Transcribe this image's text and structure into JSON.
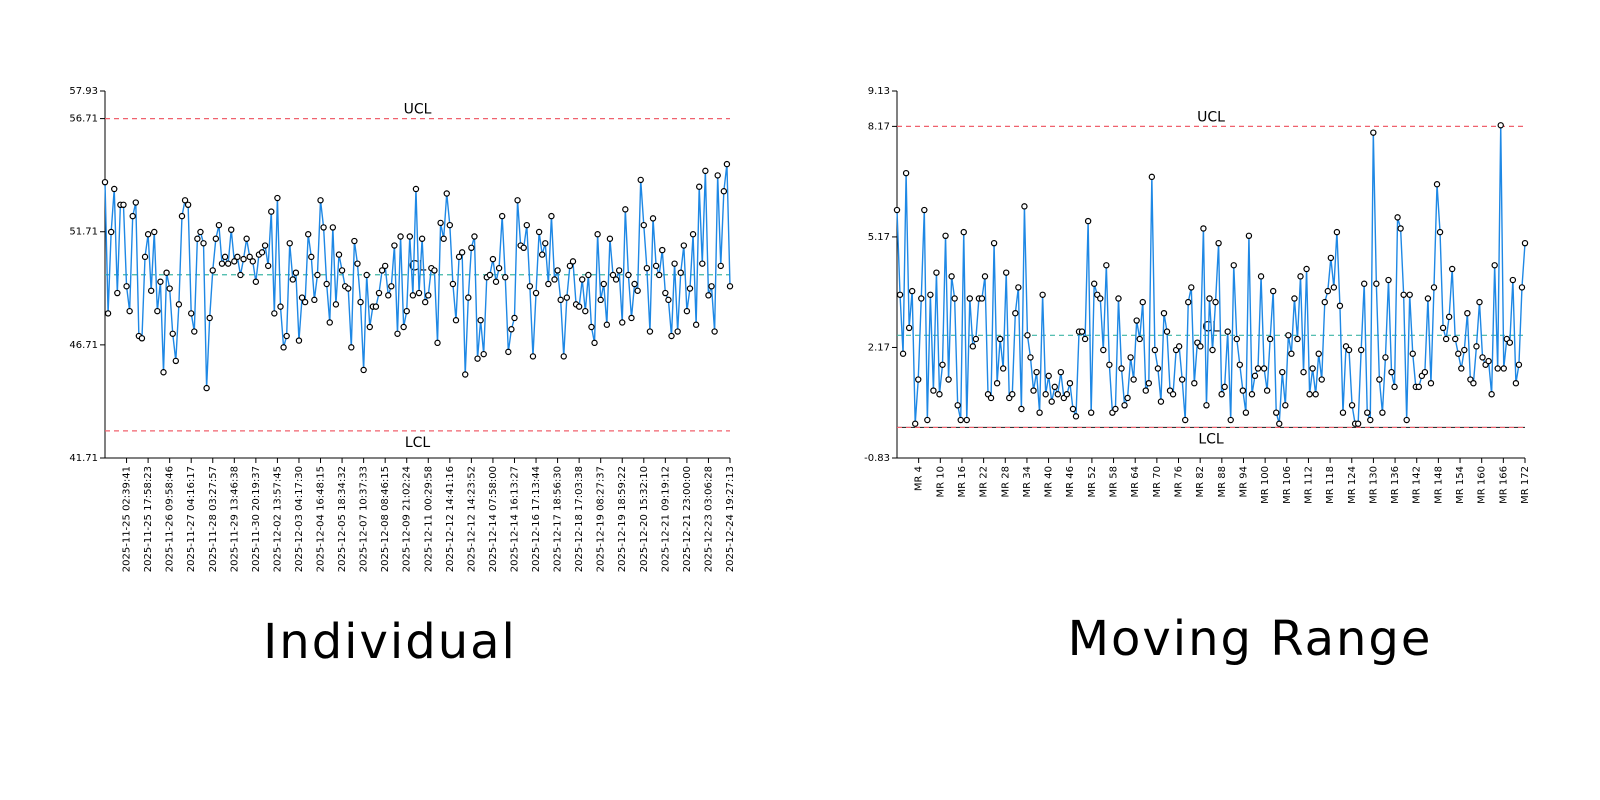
{
  "colors": {
    "line": "#1e88e5",
    "marker_stroke": "#000000",
    "marker_fill": "#ffffff",
    "limit": "#f0616d",
    "center": "#3fb6a6",
    "lcl_floor": "#333333"
  },
  "chart_data": [
    {
      "type": "line",
      "title": "Individual",
      "ylim": [
        41.71,
        57.93
      ],
      "y_ticks": [
        "41.71",
        "46.71",
        "51.71",
        "56.71",
        "57.93"
      ],
      "limits": {
        "ucl": 56.71,
        "cl": 49.81,
        "lcl": 42.91,
        "ucl_label": "UCL",
        "cl_label": "CL",
        "lcl_label": "LCL"
      },
      "x_tick_labels": [
        "2025-11-25 02:39:41",
        "2025-11-25 17:58:23",
        "2025-11-26 09:58:46",
        "2025-11-27 04:16:17",
        "2025-11-28 03:27:57",
        "2025-11-29 13:46:38",
        "2025-11-30 20:19:37",
        "2025-12-02 13:57:45",
        "2025-12-03 04:17:30",
        "2025-12-04 16:48:15",
        "2025-12-05 18:34:32",
        "2025-12-07 10:37:33",
        "2025-12-08 08:46:15",
        "2025-12-09 21:02:24",
        "2025-12-11 00:29:58",
        "2025-12-12 14:41:16",
        "2025-12-12 14:23:52",
        "2025-12-14 07:58:00",
        "2025-12-14 16:13:27",
        "2025-12-16 17:13:44",
        "2025-12-17 18:56:30",
        "2025-12-18 17:03:38",
        "2025-12-19 08:27:37",
        "2025-12-19 18:59:22",
        "2025-12-20 15:32:10",
        "2025-12-21 09:19:12",
        "2025-12-21 23:00:00",
        "2025-12-23 03:06:28",
        "2025-12-24 19:27:13"
      ],
      "values": [
        53.9,
        48.1,
        51.7,
        53.6,
        49.0,
        52.9,
        52.9,
        49.3,
        48.2,
        52.4,
        53.0,
        47.1,
        47.0,
        50.6,
        51.6,
        49.1,
        51.7,
        48.2,
        49.5,
        45.5,
        49.9,
        49.2,
        47.2,
        46.0,
        48.5,
        52.4,
        53.1,
        52.9,
        48.1,
        47.3,
        51.4,
        51.7,
        51.2,
        44.8,
        47.9,
        50.0,
        51.4,
        52.0,
        50.3,
        50.6,
        50.3,
        51.8,
        50.4,
        50.6,
        49.8,
        50.5,
        51.4,
        50.6,
        50.4,
        49.5,
        50.7,
        50.8,
        51.1,
        50.2,
        52.6,
        48.1,
        53.2,
        48.4,
        46.6,
        47.1,
        51.2,
        49.6,
        49.9,
        46.9,
        48.8,
        48.6,
        51.6,
        50.6,
        48.7,
        49.8,
        53.1,
        51.9,
        49.4,
        47.7,
        51.9,
        48.5,
        50.7,
        50.0,
        49.3,
        49.2,
        46.6,
        51.3,
        50.3,
        48.6,
        45.6,
        49.8,
        47.5,
        48.4,
        48.4,
        49.0,
        50.0,
        50.2,
        48.9,
        49.3,
        51.1,
        47.2,
        51.5,
        47.5,
        48.2,
        51.5,
        48.9,
        53.6,
        49.0,
        51.4,
        48.6,
        48.9,
        50.1,
        50.0,
        46.8,
        52.1,
        51.4,
        53.4,
        52.0,
        49.4,
        47.8,
        50.6,
        50.8,
        45.4,
        48.8,
        51.0,
        51.5,
        46.1,
        47.8,
        46.3,
        49.7,
        49.8,
        50.5,
        49.5,
        50.1,
        52.4,
        49.7,
        46.4,
        47.4,
        47.9,
        53.1,
        51.1,
        51.0,
        52.0,
        49.3,
        46.2,
        49.0,
        51.7,
        50.7,
        51.2,
        49.4,
        52.4,
        49.6,
        50.0,
        48.7,
        46.2,
        48.8,
        50.2,
        50.4,
        48.5,
        48.4,
        49.6,
        48.2,
        49.8,
        47.5,
        46.8,
        51.6,
        48.7,
        49.4,
        47.6,
        51.4,
        49.8,
        49.6,
        50.0,
        47.7,
        52.7,
        49.8,
        47.9,
        49.4,
        49.1,
        54.0,
        52.0,
        50.1,
        47.3,
        52.3,
        50.2,
        49.8,
        50.9,
        49.0,
        48.7,
        47.1,
        50.3,
        47.3,
        49.9,
        51.1,
        48.2,
        49.2,
        51.6,
        47.6,
        53.7,
        50.3,
        54.4,
        48.9,
        49.3,
        47.3,
        54.2,
        50.2,
        53.5,
        54.7,
        49.3
      ],
      "value_count": 0
    },
    {
      "type": "line",
      "title": "Moving Range",
      "ylim": [
        -0.83,
        9.13
      ],
      "y_ticks": [
        "-0.83",
        "2.17",
        "5.17",
        "8.17",
        "9.13"
      ],
      "limits": {
        "ucl": 8.17,
        "cl": 2.5,
        "lcl": 0.0,
        "ucl_label": "UCL",
        "cl_label": "CL",
        "lcl_label": "LCL"
      },
      "x_tick_labels": [
        "MR 4",
        "MR 10",
        "MR 16",
        "MR 22",
        "MR 28",
        "MR 34",
        "MR 40",
        "MR 46",
        "MR 52",
        "MR 58",
        "MR 64",
        "MR 70",
        "MR 76",
        "MR 82",
        "MR 88",
        "MR 94",
        "MR 100",
        "MR 106",
        "MR 112",
        "MR 118",
        "MR 124",
        "MR 130",
        "MR 136",
        "MR 142",
        "MR 148",
        "MR 154",
        "MR 160",
        "MR 166",
        "MR 172"
      ],
      "values": [
        5.9,
        3.6,
        2.0,
        6.9,
        2.7,
        3.7,
        0.1,
        1.3,
        3.5,
        5.9,
        0.2,
        3.6,
        1.0,
        4.2,
        0.9,
        1.7,
        5.2,
        1.3,
        4.1,
        3.5,
        0.6,
        0.2,
        5.3,
        0.2,
        3.5,
        2.2,
        2.4,
        3.5,
        3.5,
        4.1,
        0.9,
        0.8,
        5.0,
        1.2,
        2.4,
        1.6,
        4.2,
        0.8,
        0.9,
        3.1,
        3.8,
        0.5,
        6.0,
        2.5,
        1.9,
        1.0,
        1.5,
        0.4,
        3.6,
        0.9,
        1.4,
        0.7,
        1.1,
        0.9,
        1.5,
        0.8,
        0.9,
        1.2,
        0.5,
        0.3,
        2.6,
        2.6,
        2.4,
        5.6,
        0.4,
        3.9,
        3.6,
        3.5,
        2.1,
        4.4,
        1.7,
        0.4,
        0.5,
        3.5,
        1.6,
        0.6,
        0.8,
        1.9,
        1.3,
        2.9,
        2.4,
        3.4,
        1.0,
        1.2,
        6.8,
        2.1,
        1.6,
        0.7,
        3.1,
        2.6,
        1.0,
        0.9,
        2.1,
        2.2,
        1.3,
        0.2,
        3.4,
        3.8,
        1.2,
        2.3,
        2.2,
        5.4,
        0.6,
        3.5,
        2.1,
        3.4,
        5.0,
        0.9,
        1.1,
        2.6,
        0.2,
        4.4,
        2.4,
        1.7,
        1.0,
        0.4,
        5.2,
        0.9,
        1.4,
        1.6,
        4.1,
        1.6,
        1.0,
        2.4,
        3.7,
        0.4,
        0.1,
        1.5,
        0.6,
        2.5,
        2.0,
        3.5,
        2.4,
        4.1,
        1.5,
        4.3,
        0.9,
        1.6,
        0.9,
        2.0,
        1.3,
        3.4,
        3.7,
        4.6,
        3.8,
        5.3,
        3.3,
        0.4,
        2.2,
        2.1,
        0.6,
        0.1,
        0.1,
        2.1,
        3.9,
        0.4,
        0.2,
        8.0,
        3.9,
        1.3,
        0.4,
        1.9,
        4.0,
        1.5,
        1.1,
        5.7,
        5.4,
        3.6,
        0.2,
        3.6,
        2.0,
        1.1,
        1.1,
        1.4,
        1.5,
        3.5,
        1.2,
        3.8,
        6.6,
        5.3,
        2.7,
        2.4,
        3.0,
        4.3,
        2.4,
        2.0,
        1.6,
        2.1,
        3.1,
        1.3,
        1.2,
        2.2,
        3.4,
        1.9,
        1.7,
        1.8,
        0.9,
        4.4,
        1.6,
        8.2,
        1.6,
        2.4,
        2.3,
        4.0,
        1.2,
        1.7,
        3.8,
        5.0
      ]
    }
  ]
}
